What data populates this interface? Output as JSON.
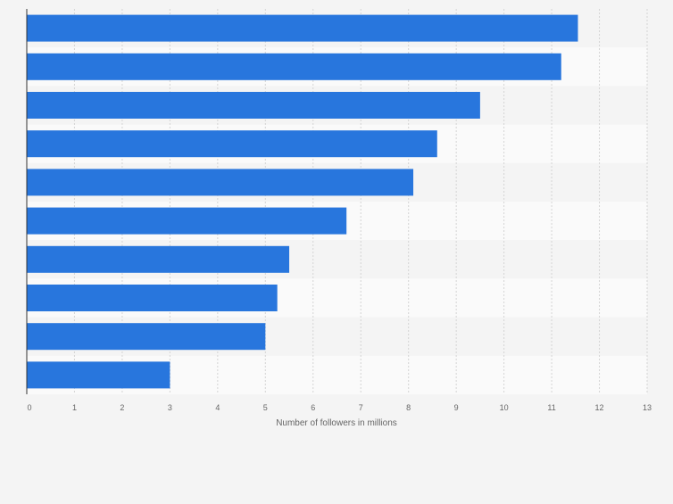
{
  "chart_data": {
    "type": "bar",
    "orientation": "horizontal",
    "categories": [
      "",
      "",
      "",
      "",
      "",
      "",
      "",
      "",
      "",
      ""
    ],
    "values": [
      11.55,
      11.2,
      9.5,
      8.6,
      8.1,
      6.7,
      5.5,
      5.25,
      5.0,
      3.0
    ],
    "title": "",
    "xlabel": "Number of followers in millions",
    "ylabel": "",
    "xlim": [
      0,
      13
    ],
    "xticks": [
      "0",
      "1",
      "2",
      "3",
      "4",
      "5",
      "6",
      "7",
      "8",
      "9",
      "10",
      "11",
      "12",
      "13"
    ],
    "grid": true,
    "legend": "none",
    "bar_color": "#2876dd",
    "band_colors": [
      "#f4f4f4",
      "#fafafa"
    ],
    "gridline_color": "#d4d4d4",
    "axis_color": "#333333",
    "text_color": "#666666"
  }
}
